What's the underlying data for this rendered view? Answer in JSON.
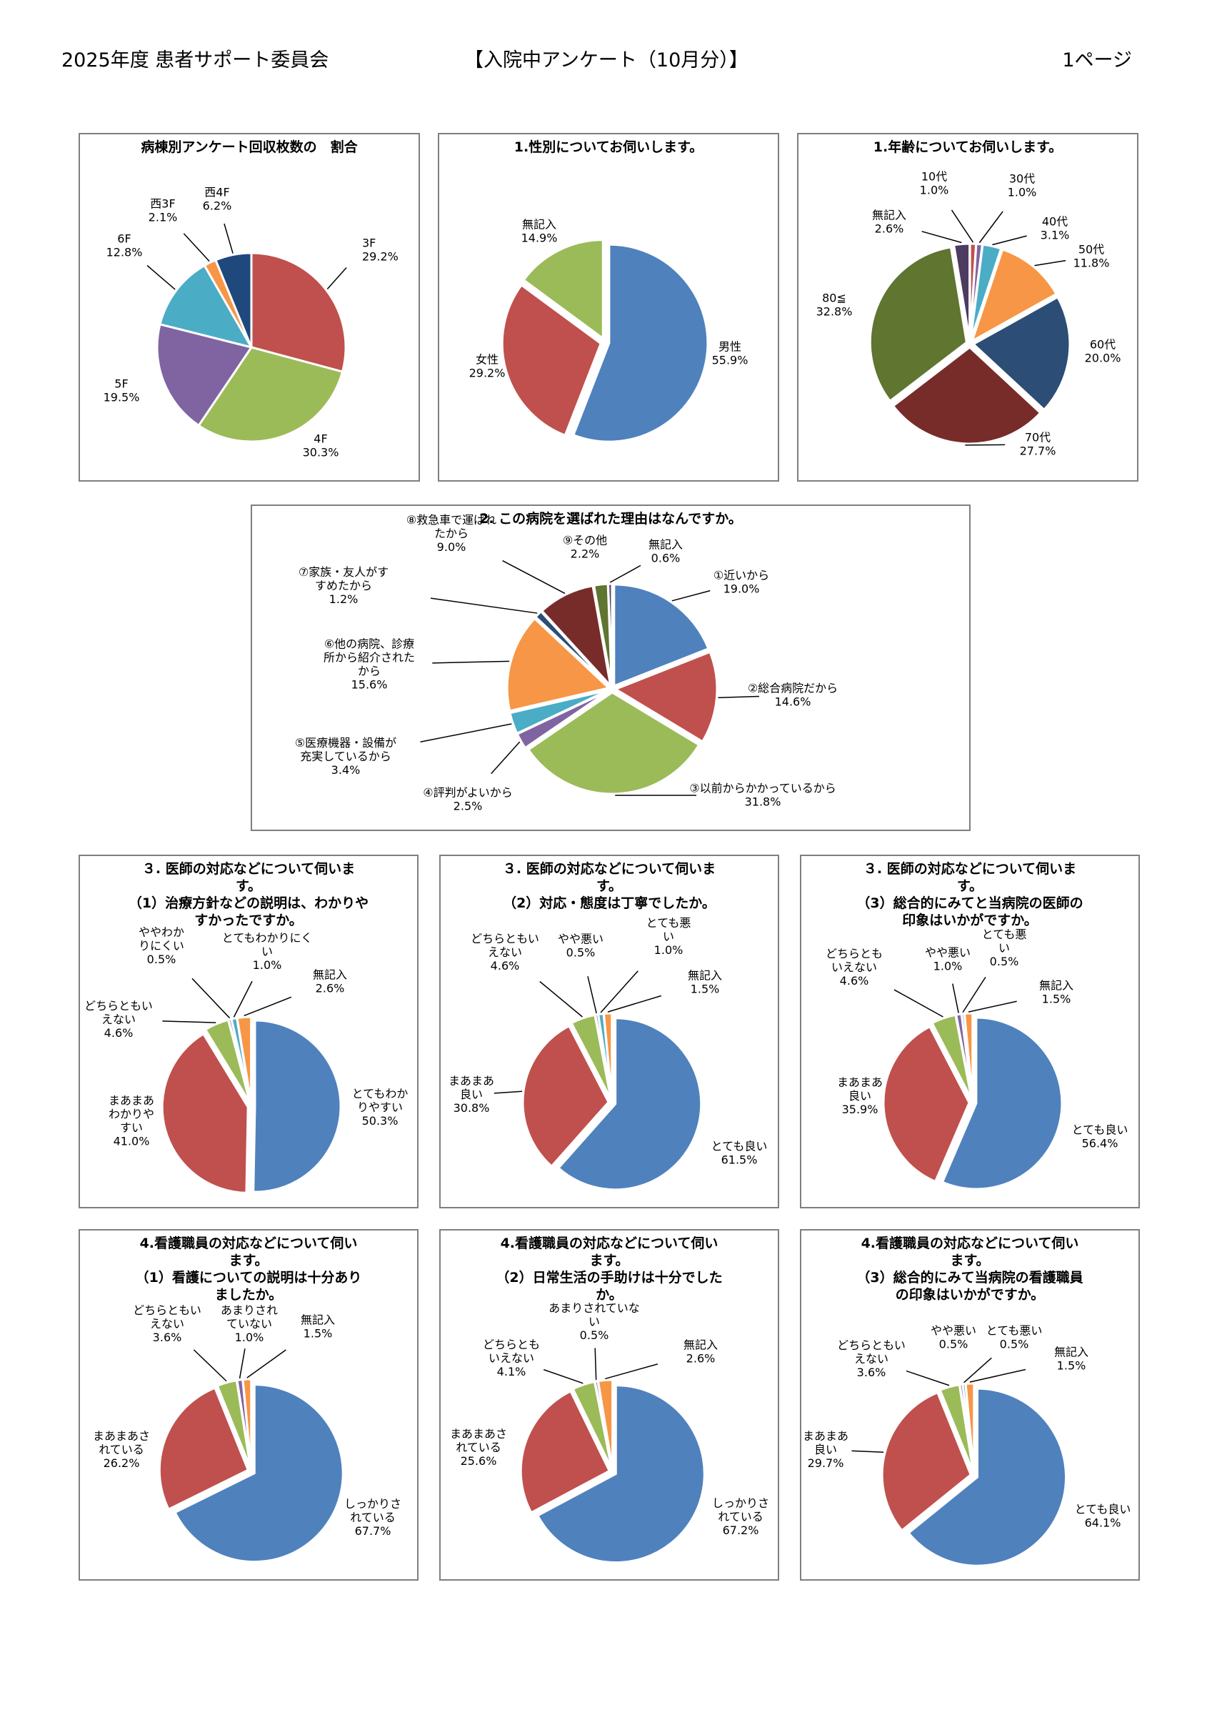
{
  "header": {
    "left": "2025年度 患者サポート委員会",
    "center": "【入院中アンケート（10月分）】",
    "right": "1ページ"
  },
  "chart_data": [
    {
      "id": "ward",
      "type": "pie",
      "title": "病棟別アンケート回収枚数の　割合",
      "slices": [
        {
          "label": "3F",
          "value": 29.2,
          "pct": "29.2%",
          "color": "#c0504d"
        },
        {
          "label": "4F",
          "value": 30.3,
          "pct": "30.3%",
          "color": "#9bbb59"
        },
        {
          "label": "5F",
          "value": 19.5,
          "pct": "19.5%",
          "color": "#8064a2"
        },
        {
          "label": "6F",
          "value": 12.8,
          "pct": "12.8%",
          "color": "#4bacc6"
        },
        {
          "label": "西3F",
          "value": 2.1,
          "pct": "2.1%",
          "color": "#f79646"
        },
        {
          "label": "西4F",
          "value": 6.2,
          "pct": "6.2%",
          "color": "#1f497d"
        }
      ]
    },
    {
      "id": "gender",
      "type": "pie",
      "title": "1.性別についてお伺いします。",
      "slices": [
        {
          "label": "男性",
          "value": 55.9,
          "pct": "55.9%",
          "color": "#4f81bd"
        },
        {
          "label": "女性",
          "value": 29.2,
          "pct": "29.2%",
          "color": "#c0504d"
        },
        {
          "label": "無記入",
          "value": 14.9,
          "pct": "14.9%",
          "color": "#9bbb59"
        }
      ]
    },
    {
      "id": "age",
      "type": "pie",
      "title": "1.年齢についてお伺いします。",
      "slices": [
        {
          "label": "10代",
          "value": 1.0,
          "pct": "1.0%",
          "color": "#c0504d"
        },
        {
          "label": "30代",
          "value": 1.0,
          "pct": "1.0%",
          "color": "#8064a2"
        },
        {
          "label": "40代",
          "value": 3.1,
          "pct": "3.1%",
          "color": "#4bacc6"
        },
        {
          "label": "50代",
          "value": 11.8,
          "pct": "11.8%",
          "color": "#f79646"
        },
        {
          "label": "60代",
          "value": 20.0,
          "pct": "20.0%",
          "color": "#2c4d75"
        },
        {
          "label": "70代",
          "value": 27.7,
          "pct": "27.7%",
          "color": "#772c2a"
        },
        {
          "label": "80≦",
          "value": 32.8,
          "pct": "32.8%",
          "color": "#5f7530"
        },
        {
          "label": "無記入",
          "value": 2.6,
          "pct": "2.6%",
          "color": "#4d3b62"
        }
      ]
    },
    {
      "id": "reason",
      "type": "pie",
      "title": "2. この病院を選ばれた理由はなんですか。",
      "slices": [
        {
          "label": "①近いから",
          "value": 19.0,
          "pct": "19.0%",
          "color": "#4f81bd"
        },
        {
          "label": "②総合病院だから",
          "value": 14.6,
          "pct": "14.6%",
          "color": "#c0504d"
        },
        {
          "label": "③以前からかかっているから",
          "value": 31.8,
          "pct": "31.8%",
          "color": "#9bbb59"
        },
        {
          "label": "④評判がよいから",
          "value": 2.5,
          "pct": "2.5%",
          "color": "#8064a2"
        },
        {
          "label": "⑤医療機器・設備が\n充実しているから",
          "value": 3.4,
          "pct": "3.4%",
          "color": "#4bacc6"
        },
        {
          "label": "⑥他の病院、診療\n所から紹介された\nから",
          "value": 15.6,
          "pct": "15.6%",
          "color": "#f79646"
        },
        {
          "label": "⑦家族・友人がす\nすめたから",
          "value": 1.2,
          "pct": "1.2%",
          "color": "#2c4d75"
        },
        {
          "label": "⑧救急車で運ばれ\nたから",
          "value": 9.0,
          "pct": "9.0%",
          "color": "#772c2a"
        },
        {
          "label": "⑨その他",
          "value": 2.2,
          "pct": "2.2%",
          "color": "#5f7530"
        },
        {
          "label": "無記入",
          "value": 0.6,
          "pct": "0.6%",
          "color": "#4d3b62"
        }
      ]
    },
    {
      "id": "doc1",
      "type": "pie",
      "title": "３. 医師の対応などについて伺いま\nす。\n（1）治療方針などの説明は、わかりや\nすかったですか。",
      "slices": [
        {
          "label": "とてもわか\nりやすい",
          "value": 50.3,
          "pct": "50.3%",
          "color": "#4f81bd"
        },
        {
          "label": "まあまあ\nわかりや\nすい",
          "value": 41.0,
          "pct": "41.0%",
          "color": "#c0504d"
        },
        {
          "label": "どちらともい\nえない",
          "value": 4.6,
          "pct": "4.6%",
          "color": "#9bbb59"
        },
        {
          "label": "ややわか\nりにくい",
          "value": 0.5,
          "pct": "0.5%",
          "color": "#8064a2"
        },
        {
          "label": "とてもわかりにく\nい",
          "value": 1.0,
          "pct": "1.0%",
          "color": "#4bacc6"
        },
        {
          "label": "無記入",
          "value": 2.6,
          "pct": "2.6%",
          "color": "#f79646"
        }
      ]
    },
    {
      "id": "doc2",
      "type": "pie",
      "title": "３. 医師の対応などについて伺いま\nす。\n（2）対応・態度は丁寧でしたか。",
      "slices": [
        {
          "label": "とても良い",
          "value": 61.5,
          "pct": "61.5%",
          "color": "#4f81bd"
        },
        {
          "label": "まあまあ\n良い",
          "value": 30.8,
          "pct": "30.8%",
          "color": "#c0504d"
        },
        {
          "label": "どちらともい\nえない",
          "value": 4.6,
          "pct": "4.6%",
          "color": "#9bbb59"
        },
        {
          "label": "やや悪い",
          "value": 0.5,
          "pct": "0.5%",
          "color": "#8064a2"
        },
        {
          "label": "とても悪\nい",
          "value": 1.0,
          "pct": "1.0%",
          "color": "#4bacc6"
        },
        {
          "label": "無記入",
          "value": 1.5,
          "pct": "1.5%",
          "color": "#f79646"
        }
      ]
    },
    {
      "id": "doc3",
      "type": "pie",
      "title": "３. 医師の対応などについて伺いま\nす。\n（3）総合的にみてと当病院の医師の\n印象はいかがですか。",
      "slices": [
        {
          "label": "とても良い",
          "value": 56.4,
          "pct": "56.4%",
          "color": "#4f81bd"
        },
        {
          "label": "まあまあ\n良い",
          "value": 35.9,
          "pct": "35.9%",
          "color": "#c0504d"
        },
        {
          "label": "どちらとも\nいえない",
          "value": 4.6,
          "pct": "4.6%",
          "color": "#9bbb59"
        },
        {
          "label": "やや悪い",
          "value": 1.0,
          "pct": "1.0%",
          "color": "#8064a2"
        },
        {
          "label": "とても悪\nい",
          "value": 0.5,
          "pct": "0.5%",
          "color": "#4bacc6"
        },
        {
          "label": "無記入",
          "value": 1.5,
          "pct": "1.5%",
          "color": "#f79646"
        }
      ]
    },
    {
      "id": "nurse1",
      "type": "pie",
      "title": "4.看護職員の対応などについて伺い\nます。\n（1）看護についての説明は十分あり\nましたか。",
      "slices": [
        {
          "label": "しっかりさ\nれている",
          "value": 67.7,
          "pct": "67.7%",
          "color": "#4f81bd"
        },
        {
          "label": "まあまあさ\nれている",
          "value": 26.2,
          "pct": "26.2%",
          "color": "#c0504d"
        },
        {
          "label": "どちらともい\nえない",
          "value": 3.6,
          "pct": "3.6%",
          "color": "#9bbb59"
        },
        {
          "label": "あまりされ\nていない",
          "value": 1.0,
          "pct": "1.0%",
          "color": "#8064a2"
        },
        {
          "label": "無記入",
          "value": 1.5,
          "pct": "1.5%",
          "color": "#f79646"
        }
      ]
    },
    {
      "id": "nurse2",
      "type": "pie",
      "title": "4.看護職員の対応などについて伺い\nます。\n（2）日常生活の手助けは十分でした\nか。",
      "slices": [
        {
          "label": "しっかりさ\nれている",
          "value": 67.2,
          "pct": "67.2%",
          "color": "#4f81bd"
        },
        {
          "label": "まあまあさ\nれている",
          "value": 25.6,
          "pct": "25.6%",
          "color": "#c0504d"
        },
        {
          "label": "どちらとも\nいえない",
          "value": 4.1,
          "pct": "4.1%",
          "color": "#9bbb59"
        },
        {
          "label": "あまりされていな\nい",
          "value": 0.5,
          "pct": "0.5%",
          "color": "#8064a2"
        },
        {
          "label": "無記入",
          "value": 2.6,
          "pct": "2.6%",
          "color": "#f79646"
        }
      ]
    },
    {
      "id": "nurse3",
      "type": "pie",
      "title": "4.看護職員の対応などについて伺い\nます。\n（3）総合的にみて当病院の看護職員\nの印象はいかがですか。",
      "slices": [
        {
          "label": "とても良い",
          "value": 64.1,
          "pct": "64.1%",
          "color": "#4f81bd"
        },
        {
          "label": "まあまあ\n良い",
          "value": 29.7,
          "pct": "29.7%",
          "color": "#c0504d"
        },
        {
          "label": "どちらともい\nえない",
          "value": 3.6,
          "pct": "3.6%",
          "color": "#9bbb59"
        },
        {
          "label": "やや悪い",
          "value": 0.5,
          "pct": "0.5%",
          "color": "#8064a2"
        },
        {
          "label": "とても悪い",
          "value": 0.5,
          "pct": "0.5%",
          "color": "#4bacc6"
        },
        {
          "label": "無記入",
          "value": 1.5,
          "pct": "1.5%",
          "color": "#f79646"
        }
      ]
    }
  ]
}
